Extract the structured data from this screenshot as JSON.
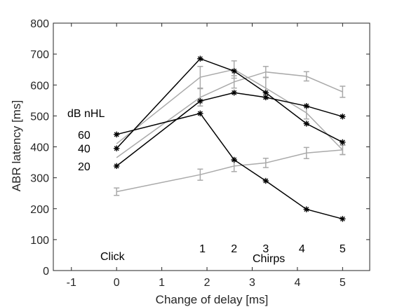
{
  "chart_data": {
    "type": "line",
    "xlabel": "Change of delay [ms]",
    "ylabel": "ABR latency [ms]",
    "xlim": [
      -1.4,
      5.6
    ],
    "ylim": [
      0,
      800
    ],
    "xticks": [
      -1,
      0,
      1,
      2,
      3,
      4,
      5
    ],
    "yticks": [
      0,
      100,
      200,
      300,
      400,
      500,
      600,
      700,
      800
    ],
    "grid": false,
    "legend_title": "dB nHL",
    "level_labels": [
      {
        "text": "60",
        "y": 440
      },
      {
        "text": "40",
        "y": 395
      },
      {
        "text": "20",
        "y": 338
      }
    ],
    "annotations": {
      "click": "Click",
      "chirps": "Chirps",
      "chirp_numbers": [
        "1",
        "2",
        "3",
        "4",
        "5"
      ],
      "chirp_number_x": [
        1.9,
        2.6,
        3.3,
        4.1,
        5.0
      ]
    },
    "series": [
      {
        "color": "#000000",
        "marker": "asterisk",
        "x": [
          0,
          1.85,
          2.6,
          3.3,
          4.2,
          5.0
        ],
        "y": [
          395,
          685,
          645,
          575,
          475,
          415
        ]
      },
      {
        "color": "#000000",
        "marker": "asterisk",
        "x": [
          0,
          1.85,
          2.6,
          3.3,
          4.2,
          5.0
        ],
        "y": [
          338,
          548,
          575,
          560,
          532,
          498
        ]
      },
      {
        "color": "#000000",
        "marker": "asterisk",
        "x": [
          0,
          1.85,
          2.6,
          3.3,
          4.2,
          5.0
        ],
        "y": [
          440,
          508,
          358,
          290,
          198,
          167
        ]
      },
      {
        "color": "#aaaaaa",
        "marker": "errorbar",
        "x": [
          0,
          1.85,
          2.6,
          3.3,
          4.2,
          5.0
        ],
        "y": [
          410,
          625,
          650,
          590,
          510,
          390
        ],
        "err": [
          0,
          35,
          28,
          35,
          20,
          15
        ]
      },
      {
        "color": "#aaaaaa",
        "marker": "errorbar",
        "x": [
          0,
          1.85,
          2.6,
          3.3,
          4.2,
          5.0
        ],
        "y": [
          365,
          560,
          610,
          642,
          628,
          578
        ],
        "err": [
          0,
          28,
          20,
          18,
          15,
          18
        ]
      },
      {
        "color": "#aaaaaa",
        "marker": "errorbar",
        "x": [
          0,
          1.85,
          2.6,
          3.3,
          4.2,
          5.0
        ],
        "y": [
          255,
          310,
          338,
          348,
          380,
          390
        ],
        "err": [
          12,
          18,
          18,
          15,
          18,
          15
        ]
      }
    ]
  }
}
